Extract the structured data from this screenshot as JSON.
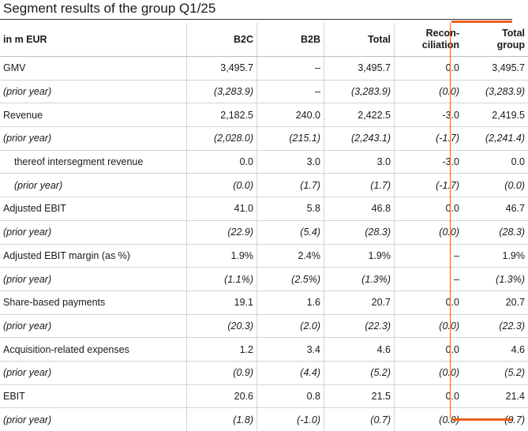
{
  "title": "Segment results of the group Q1/25",
  "colors": {
    "accent": "#e8601c",
    "rule": "#d3d3d3"
  },
  "header": {
    "label": "in m EUR",
    "b2c": "B2C",
    "b2b": "B2B",
    "total": "Total",
    "recon_line1": "Recon-",
    "recon_line2": "ciliation",
    "group_line1": "Total",
    "group_line2": "group"
  },
  "rows": [
    {
      "label": "GMV",
      "b2c": "3,495.7",
      "b2b": "–",
      "total": "3,495.7",
      "recon": "0.0",
      "group": "3,495.7"
    },
    {
      "label": "(prior year)",
      "b2c": "(3,283.9)",
      "b2b": "–",
      "total": "(3,283.9)",
      "recon": "(0.0)",
      "group": "(3,283.9)"
    },
    {
      "label": "Revenue",
      "b2c": "2,182.5",
      "b2b": "240.0",
      "total": "2,422.5",
      "recon": "-3.0",
      "group": "2,419.5"
    },
    {
      "label": "(prior year)",
      "b2c": "(2,028.0)",
      "b2b": "(215.1)",
      "total": "(2,243.1)",
      "recon": "(-1.7)",
      "group": "(2,241.4)"
    },
    {
      "label": "thereof intersegment revenue",
      "b2c": "0.0",
      "b2b": "3.0",
      "total": "3.0",
      "recon": "-3.0",
      "group": "0.0"
    },
    {
      "label": "(prior year)",
      "b2c": "(0.0)",
      "b2b": "(1.7)",
      "total": "(1.7)",
      "recon": "(-1.7)",
      "group": "(0.0)"
    },
    {
      "label": "Adjusted EBIT",
      "b2c": "41.0",
      "b2b": "5.8",
      "total": "46.8",
      "recon": "0.0",
      "group": "46.7"
    },
    {
      "label": "(prior year)",
      "b2c": "(22.9)",
      "b2b": "(5.4)",
      "total": "(28.3)",
      "recon": "(0.0)",
      "group": "(28.3)"
    },
    {
      "label": "Adjusted EBIT margin (as %)",
      "b2c": "1.9%",
      "b2b": "2.4%",
      "total": "1.9%",
      "recon": "–",
      "group": "1.9%"
    },
    {
      "label": "(prior year)",
      "b2c": "(1.1%)",
      "b2b": "(2.5%)",
      "total": "(1.3%)",
      "recon": "–",
      "group": "(1.3%)"
    },
    {
      "label": "Share-based payments",
      "b2c": "19.1",
      "b2b": "1.6",
      "total": "20.7",
      "recon": "0.0",
      "group": "20.7"
    },
    {
      "label": "(prior year)",
      "b2c": "(20.3)",
      "b2b": "(2.0)",
      "total": "(22.3)",
      "recon": "(0.0)",
      "group": "(22.3)"
    },
    {
      "label": "Acquisition-related expenses",
      "b2c": "1.2",
      "b2b": "3.4",
      "total": "4.6",
      "recon": "0.0",
      "group": "4.6"
    },
    {
      "label": "(prior year)",
      "b2c": "(0.9)",
      "b2b": "(4.4)",
      "total": "(5.2)",
      "recon": "(0.0)",
      "group": "(5.2)"
    },
    {
      "label": "EBIT",
      "b2c": "20.6",
      "b2b": "0.8",
      "total": "21.5",
      "recon": "0.0",
      "group": "21.4"
    },
    {
      "label": "(prior year)",
      "b2c": "(1.8)",
      "b2b": "(-1.0)",
      "total": "(0.7)",
      "recon": "(0.0)",
      "group": "(0.7)"
    }
  ]
}
